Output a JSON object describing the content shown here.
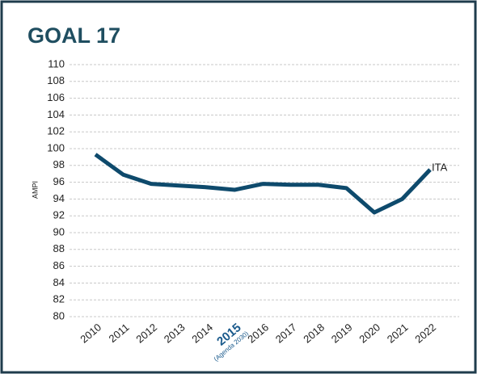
{
  "chart_data": {
    "type": "line",
    "title": "GOAL 17",
    "y_label": "AMPI",
    "categories": [
      "2010",
      "2011",
      "2012",
      "2013",
      "2014",
      "2015",
      "2016",
      "2017",
      "2018",
      "2019",
      "2020",
      "2021",
      "2022"
    ],
    "series": [
      {
        "name": "ITA",
        "color": "#0e4a6c",
        "values": [
          99.3,
          96.9,
          95.8,
          95.6,
          95.4,
          95.1,
          95.8,
          95.7,
          95.7,
          95.3,
          92.4,
          94.0,
          97.5
        ]
      }
    ],
    "ylim": [
      80,
      110
    ],
    "yticks": [
      80,
      82,
      84,
      86,
      88,
      90,
      92,
      94,
      96,
      98,
      100,
      102,
      104,
      106,
      108,
      110
    ],
    "grid": true,
    "highlight_index": 5,
    "highlight_color": "#1a5a8c",
    "annotation": "(Agenda 2030)"
  }
}
